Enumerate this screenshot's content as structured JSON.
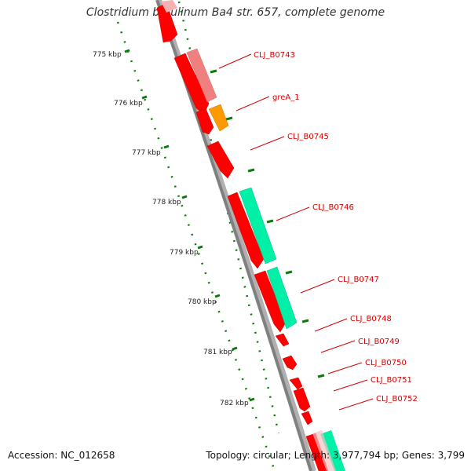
{
  "title": "Clostridium botulinum Ba4 str. 657, complete genome",
  "footer": {
    "accession": "Accession: NC_012658",
    "summary": "Topology: circular; Length: 3,977,794 bp; Genes: 3,799"
  },
  "colors": {
    "backbone": "#808080",
    "gene_red": "#ff0000",
    "gene_pink": "#f08080",
    "gene_orange": "#ff9900",
    "gene_teal": "#00e6a0",
    "tick_green": "#0a7a0a",
    "label_red": "#d40000"
  },
  "scale_labels": [
    "775 kbp",
    "776 kbp",
    "777 kbp",
    "778 kbp",
    "779 kbp",
    "780 kbp",
    "781 kbp",
    "782 kbp"
  ],
  "gene_labels": [
    "CLJ_B0743",
    "greA_1",
    "CLJ_B0745",
    "CLJ_B0746",
    "CLJ_B0747",
    "CLJ_B0748",
    "CLJ_B0749",
    "CLJ_B0750",
    "CLJ_B0751",
    "CLJ_B0752"
  ]
}
